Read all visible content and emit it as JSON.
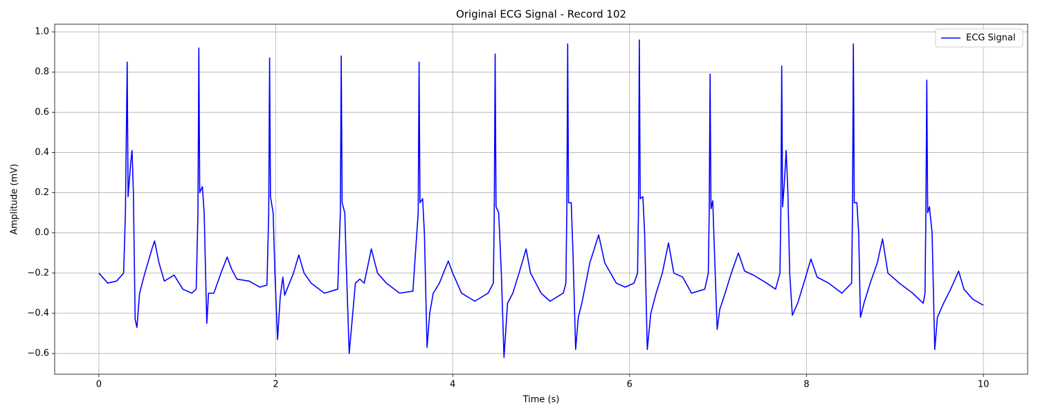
{
  "chart_data": {
    "type": "line",
    "title": "Original ECG Signal - Record 102",
    "x_label": "Time (s)",
    "y_label": "Amplitude (mV)",
    "xlim": [
      -0.5,
      10.5
    ],
    "ylim": [
      -0.703,
      1.038
    ],
    "xticks": [
      0,
      2,
      4,
      6,
      8,
      10
    ],
    "yticks": [
      {
        "value": -0.6,
        "label": "−0.6"
      },
      {
        "value": -0.4,
        "label": "−0.4"
      },
      {
        "value": -0.2,
        "label": "−0.2"
      },
      {
        "value": 0,
        "label": "0.0"
      },
      0.2,
      0.4,
      0.6,
      0.8,
      {
        "value": 1,
        "label": "1.0"
      }
    ],
    "grid": true,
    "legend": "upper right",
    "x": [
      0,
      0.1,
      0.2,
      0.28,
      0.3,
      0.32,
      0.33,
      0.36,
      0.375,
      0.39,
      0.41,
      0.43,
      0.46,
      0.52,
      0.6,
      0.63,
      0.68,
      0.74,
      0.85,
      0.95,
      1.05,
      1.1,
      1.12,
      1.13,
      1.14,
      1.17,
      1.19,
      1.22,
      1.24,
      1.3,
      1.38,
      1.45,
      1.5,
      1.56,
      1.7,
      1.82,
      1.9,
      1.92,
      1.93,
      1.94,
      1.97,
      1.99,
      2.02,
      2.05,
      2.08,
      2.1,
      2.2,
      2.26,
      2.32,
      2.4,
      2.55,
      2.7,
      2.73,
      2.74,
      2.75,
      2.78,
      2.8,
      2.83,
      2.86,
      2.9,
      2.95,
      3.0,
      3.08,
      3.15,
      3.25,
      3.4,
      3.55,
      3.61,
      3.62,
      3.63,
      3.66,
      3.68,
      3.71,
      3.74,
      3.78,
      3.85,
      3.95,
      4.0,
      4.1,
      4.25,
      4.4,
      4.46,
      4.47,
      4.48,
      4.49,
      4.52,
      4.55,
      4.58,
      4.62,
      4.68,
      4.75,
      4.83,
      4.88,
      5.0,
      5.1,
      5.25,
      5.28,
      5.29,
      5.3,
      5.31,
      5.34,
      5.36,
      5.39,
      5.42,
      5.46,
      5.55,
      5.65,
      5.72,
      5.85,
      5.95,
      6.05,
      6.09,
      6.1,
      6.11,
      6.12,
      6.15,
      6.17,
      6.2,
      6.24,
      6.3,
      6.37,
      6.44,
      6.5,
      6.6,
      6.7,
      6.85,
      6.89,
      6.9,
      6.91,
      6.92,
      6.94,
      6.96,
      6.99,
      7.02,
      7.08,
      7.15,
      7.23,
      7.3,
      7.4,
      7.55,
      7.65,
      7.7,
      7.71,
      7.72,
      7.73,
      7.75,
      7.77,
      7.79,
      7.81,
      7.84,
      7.9,
      7.97,
      8.05,
      8.12,
      8.25,
      8.4,
      8.51,
      8.52,
      8.53,
      8.54,
      8.57,
      8.59,
      8.61,
      8.65,
      8.72,
      8.8,
      8.86,
      8.92,
      9.05,
      9.2,
      9.32,
      9.34,
      9.35,
      9.36,
      9.37,
      9.39,
      9.42,
      9.45,
      9.48,
      9.55,
      9.63,
      9.72,
      9.78,
      9.88,
      10.0
    ],
    "series": [
      {
        "name": "ECG Signal",
        "color": "#0000ff",
        "values": [
          -0.2,
          -0.25,
          -0.24,
          -0.2,
          0.1,
          0.85,
          0.18,
          0.35,
          0.41,
          0.2,
          -0.43,
          -0.47,
          -0.3,
          -0.2,
          -0.08,
          -0.04,
          -0.15,
          -0.24,
          -0.21,
          -0.28,
          -0.3,
          -0.28,
          0.1,
          0.92,
          0.2,
          0.23,
          0.1,
          -0.45,
          -0.3,
          -0.3,
          -0.2,
          -0.12,
          -0.18,
          -0.23,
          -0.24,
          -0.27,
          -0.26,
          0.1,
          0.87,
          0.18,
          0.1,
          -0.2,
          -0.53,
          -0.32,
          -0.22,
          -0.31,
          -0.2,
          -0.11,
          -0.2,
          -0.25,
          -0.3,
          -0.28,
          0.1,
          0.88,
          0.15,
          0.1,
          -0.2,
          -0.6,
          -0.45,
          -0.25,
          -0.23,
          -0.25,
          -0.08,
          -0.2,
          -0.25,
          -0.3,
          -0.29,
          0.1,
          0.85,
          0.15,
          0.17,
          0.0,
          -0.57,
          -0.4,
          -0.3,
          -0.25,
          -0.14,
          -0.2,
          -0.3,
          -0.34,
          -0.3,
          -0.25,
          0.1,
          0.89,
          0.13,
          0.1,
          -0.2,
          -0.62,
          -0.35,
          -0.3,
          -0.2,
          -0.08,
          -0.2,
          -0.3,
          -0.34,
          -0.3,
          -0.25,
          0.1,
          0.94,
          0.15,
          0.15,
          -0.1,
          -0.58,
          -0.42,
          -0.35,
          -0.15,
          -0.01,
          -0.15,
          -0.25,
          -0.27,
          -0.25,
          -0.2,
          0.1,
          0.96,
          0.17,
          0.18,
          0.0,
          -0.58,
          -0.4,
          -0.3,
          -0.2,
          -0.05,
          -0.2,
          -0.22,
          -0.3,
          -0.28,
          -0.2,
          0.1,
          0.79,
          0.12,
          0.16,
          -0.1,
          -0.48,
          -0.38,
          -0.3,
          -0.2,
          -0.1,
          -0.19,
          -0.21,
          -0.25,
          -0.28,
          -0.2,
          0.1,
          0.83,
          0.13,
          0.25,
          0.41,
          0.2,
          -0.2,
          -0.41,
          -0.35,
          -0.25,
          -0.13,
          -0.22,
          -0.25,
          -0.3,
          -0.25,
          0.1,
          0.94,
          0.15,
          0.15,
          0.0,
          -0.42,
          -0.35,
          -0.25,
          -0.15,
          -0.03,
          -0.2,
          -0.25,
          -0.3,
          -0.35,
          -0.3,
          0.1,
          0.76,
          0.1,
          0.13,
          0.0,
          -0.58,
          -0.42,
          -0.35,
          -0.28,
          -0.19,
          -0.28,
          -0.33,
          -0.36
        ]
      }
    ]
  }
}
